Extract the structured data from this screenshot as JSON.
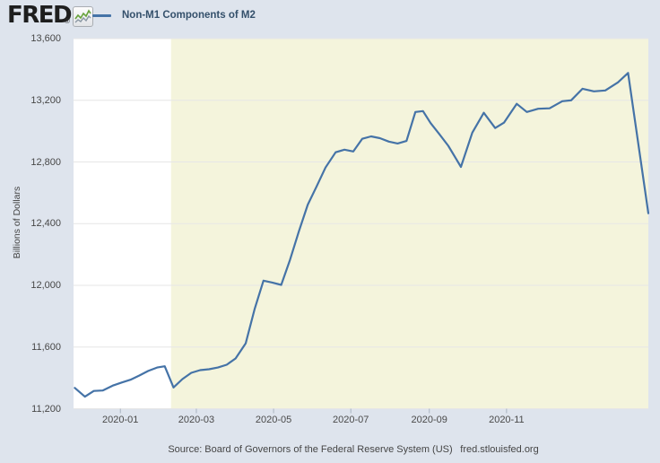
{
  "header": {
    "logo_text": "FRED",
    "registered_mark": "®",
    "legend_label": "Non-M1 Components of M2"
  },
  "footer": {
    "source": "Source: Board of Governors of the Federal Reserve System (US)",
    "site_link": "fred.stlouisfed.org"
  },
  "colors": {
    "page_bg": "#dee4ed",
    "plot_bg": "#ffffff",
    "recession_band": "#f4f4dc",
    "gridline": "#e6e6e6",
    "line": "#4573a7",
    "axis_tick": "#a9b3c0",
    "legend_text": "#34506b",
    "logo_text": "#1e1e1e",
    "label_text": "#444444"
  },
  "chart_data": {
    "type": "line",
    "title": "Non-M1 Components of M2",
    "xlabel": "",
    "ylabel": "Billions of Dollars",
    "grid": true,
    "legend_position": "top-left",
    "x_start": "2019-11-25",
    "x_end": "2021-02-21",
    "ylim": [
      11200,
      13600
    ],
    "y_ticks": [
      {
        "value": 11200,
        "label": "11,200"
      },
      {
        "value": 11600,
        "label": "11,600"
      },
      {
        "value": 12000,
        "label": "12,000"
      },
      {
        "value": 12400,
        "label": "12,400"
      },
      {
        "value": 12800,
        "label": "12,800"
      },
      {
        "value": 13200,
        "label": "13,200"
      },
      {
        "value": 13600,
        "label": "13,600"
      }
    ],
    "x_ticks": [
      {
        "date": "2020-01-01",
        "label": "2020-01"
      },
      {
        "date": "2020-03-01",
        "label": "2020-03"
      },
      {
        "date": "2020-05-01",
        "label": "2020-05"
      },
      {
        "date": "2020-07-01",
        "label": "2020-07"
      },
      {
        "date": "2020-09-01",
        "label": "2020-09"
      },
      {
        "date": "2020-11-01",
        "label": "2020-11"
      }
    ],
    "highlight_band": {
      "start": "2020-02-10",
      "end": "2021-02-21"
    },
    "series": [
      {
        "name": "Non-M1 Components of M2",
        "units": "Billions of Dollars",
        "points": [
          [
            "2019-11-26",
            11335
          ],
          [
            "2019-12-04",
            11278
          ],
          [
            "2019-12-11",
            11315
          ],
          [
            "2019-12-18",
            11318
          ],
          [
            "2019-12-26",
            11350
          ],
          [
            "2020-01-02",
            11370
          ],
          [
            "2020-01-09",
            11388
          ],
          [
            "2020-01-16",
            11415
          ],
          [
            "2020-01-23",
            11445
          ],
          [
            "2020-01-30",
            11467
          ],
          [
            "2020-02-05",
            11475
          ],
          [
            "2020-02-12",
            11338
          ],
          [
            "2020-02-19",
            11392
          ],
          [
            "2020-02-26",
            11433
          ],
          [
            "2020-03-04",
            11450
          ],
          [
            "2020-03-11",
            11456
          ],
          [
            "2020-03-18",
            11467
          ],
          [
            "2020-03-25",
            11485
          ],
          [
            "2020-04-01",
            11526
          ],
          [
            "2020-04-09",
            11624
          ],
          [
            "2020-04-16",
            11845
          ],
          [
            "2020-04-23",
            12030
          ],
          [
            "2020-04-30",
            12018
          ],
          [
            "2020-05-07",
            12003
          ],
          [
            "2020-05-14",
            12165
          ],
          [
            "2020-05-21",
            12350
          ],
          [
            "2020-05-28",
            12523
          ],
          [
            "2020-06-04",
            12642
          ],
          [
            "2020-06-11",
            12764
          ],
          [
            "2020-06-19",
            12863
          ],
          [
            "2020-06-26",
            12880
          ],
          [
            "2020-07-03",
            12868
          ],
          [
            "2020-07-10",
            12950
          ],
          [
            "2020-07-17",
            12966
          ],
          [
            "2020-07-24",
            12954
          ],
          [
            "2020-07-31",
            12932
          ],
          [
            "2020-08-07",
            12920
          ],
          [
            "2020-08-14",
            12936
          ],
          [
            "2020-08-21",
            13124
          ],
          [
            "2020-08-27",
            13130
          ],
          [
            "2020-09-02",
            13052
          ],
          [
            "2020-09-09",
            12980
          ],
          [
            "2020-09-16",
            12905
          ],
          [
            "2020-09-26",
            12768
          ],
          [
            "2020-10-05",
            12990
          ],
          [
            "2020-10-14",
            13119
          ],
          [
            "2020-10-23",
            13020
          ],
          [
            "2020-10-30",
            13055
          ],
          [
            "2020-11-09",
            13177
          ],
          [
            "2020-11-17",
            13124
          ],
          [
            "2020-11-26",
            13145
          ],
          [
            "2020-12-05",
            13148
          ],
          [
            "2020-12-15",
            13194
          ],
          [
            "2020-12-22",
            13200
          ],
          [
            "2020-12-31",
            13275
          ],
          [
            "2021-01-09",
            13258
          ],
          [
            "2021-01-18",
            13264
          ],
          [
            "2021-01-28",
            13316
          ],
          [
            "2021-02-05",
            13377
          ],
          [
            "2021-02-21",
            12467
          ]
        ]
      }
    ]
  }
}
